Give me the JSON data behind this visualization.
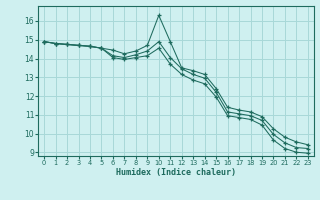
{
  "xlabel": "Humidex (Indice chaleur)",
  "xlim": [
    -0.5,
    23.5
  ],
  "ylim": [
    8.8,
    16.8
  ],
  "yticks": [
    9,
    10,
    11,
    12,
    13,
    14,
    15,
    16
  ],
  "xticks": [
    0,
    1,
    2,
    3,
    4,
    5,
    6,
    7,
    8,
    9,
    10,
    11,
    12,
    13,
    14,
    15,
    16,
    17,
    18,
    19,
    20,
    21,
    22,
    23
  ],
  "bg_color": "#cff0f0",
  "grid_color": "#a8d8d8",
  "line_color": "#1e6b5e",
  "line1_y": [
    14.9,
    14.8,
    14.75,
    14.7,
    14.65,
    14.55,
    14.45,
    14.25,
    14.4,
    14.7,
    16.3,
    14.9,
    13.5,
    13.35,
    13.15,
    12.4,
    11.4,
    11.25,
    11.15,
    10.9,
    10.25,
    9.8,
    9.55,
    9.4
  ],
  "line2_y": [
    14.9,
    14.8,
    14.75,
    14.7,
    14.65,
    14.55,
    14.15,
    14.05,
    14.2,
    14.4,
    14.9,
    14.05,
    13.45,
    13.15,
    12.95,
    12.2,
    11.15,
    11.05,
    10.95,
    10.7,
    9.95,
    9.5,
    9.25,
    9.2
  ],
  "line3_y": [
    14.9,
    14.8,
    14.75,
    14.7,
    14.65,
    14.55,
    14.05,
    13.95,
    14.05,
    14.15,
    14.55,
    13.7,
    13.15,
    12.85,
    12.65,
    11.95,
    10.95,
    10.85,
    10.75,
    10.45,
    9.65,
    9.2,
    9.0,
    8.95
  ]
}
